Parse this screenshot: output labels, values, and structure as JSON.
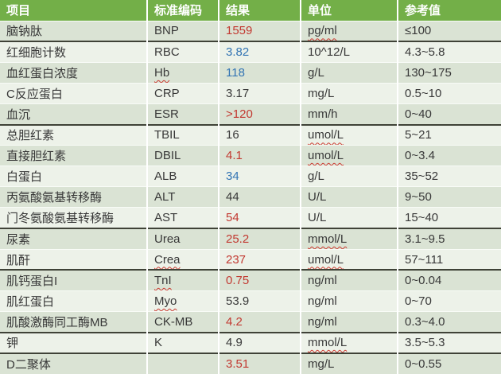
{
  "colors": {
    "header_bg": "#73AF48",
    "header_text": "#FFFFFF",
    "row_tinted": "#DAE3D4",
    "row_light": "#EDF2E9",
    "body_text": "#383838",
    "abnormal_high_red": "#C23931",
    "abnormal_low_blue": "#3274B3",
    "group_separator": "#3F4237",
    "row_separator": "#F8FBF7"
  },
  "table": {
    "columns": [
      {
        "label": "项目"
      },
      {
        "label": "标准编码"
      },
      {
        "label": "结果"
      },
      {
        "label": "单位"
      },
      {
        "label": "参考值"
      }
    ],
    "rows": [
      {
        "name": "脑钠肽",
        "code": "BNP",
        "result": "1559",
        "result_color": "red",
        "unit": "pg/ml",
        "unit_misspelled": true,
        "ref": "≤100",
        "separator_after": true
      },
      {
        "name": "红细胞计数",
        "code": "RBC",
        "result": "3.82",
        "result_color": "blue",
        "unit": "10^12/L",
        "ref": "4.3~5.8"
      },
      {
        "name": "血红蛋白浓度",
        "code": "Hb",
        "code_misspelled": true,
        "result": "118",
        "result_color": "blue",
        "unit": "g/L",
        "ref": "130~175"
      },
      {
        "name": "C反应蛋白",
        "code": "CRP",
        "result": "3.17",
        "result_color": "black",
        "unit": "mg/L",
        "ref": "0.5~10"
      },
      {
        "name": "血沉",
        "code": "ESR",
        "result": ">120",
        "result_color": "red",
        "unit": "mm/h",
        "ref": "0~40",
        "separator_after": true
      },
      {
        "name": "总胆红素",
        "code": "TBIL",
        "result": "16",
        "result_color": "black",
        "unit": "umol/L",
        "unit_misspelled": true,
        "ref": "5~21"
      },
      {
        "name": "直接胆红素",
        "code": "DBIL",
        "result": "4.1",
        "result_color": "red",
        "unit": "umol/L",
        "unit_misspelled": true,
        "ref": "0~3.4"
      },
      {
        "name": "白蛋白",
        "code": "ALB",
        "result": "34",
        "result_color": "blue",
        "unit": "g/L",
        "ref": "35~52"
      },
      {
        "name": "丙氨酸氨基转移酶",
        "code": "ALT",
        "result": "44",
        "result_color": "black",
        "unit": "U/L",
        "ref": "9~50"
      },
      {
        "name": "门冬氨酸氨基转移酶",
        "code": "AST",
        "result": "54",
        "result_color": "red",
        "unit": "U/L",
        "ref": "15~40",
        "separator_after": true
      },
      {
        "name": "尿素",
        "code": "Urea",
        "result": "25.2",
        "result_color": "red",
        "unit": "mmol/L",
        "unit_misspelled": true,
        "ref": "3.1~9.5"
      },
      {
        "name": "肌酐",
        "code": "Crea",
        "code_misspelled": true,
        "result": "237",
        "result_color": "red",
        "unit": "umol/L",
        "unit_misspelled": true,
        "ref": "57~111",
        "separator_after": true
      },
      {
        "name": "肌钙蛋白I",
        "code": "TnI",
        "code_misspelled": true,
        "result": "0.75",
        "result_color": "red",
        "unit": "ng/ml",
        "ref": "0~0.04"
      },
      {
        "name": "肌红蛋白",
        "code": "Myo",
        "code_misspelled": true,
        "result": "53.9",
        "result_color": "black",
        "unit": "ng/ml",
        "ref": "0~70"
      },
      {
        "name": "肌酸激酶同工酶MB",
        "code": "CK-MB",
        "result": "4.2",
        "result_color": "red",
        "unit": "ng/ml",
        "ref": "0.3~4.0",
        "separator_after": true
      },
      {
        "name": "钾",
        "code": "K",
        "result": "4.9",
        "result_color": "black",
        "unit": "mmol/L",
        "unit_misspelled": true,
        "ref": "3.5~5.3",
        "separator_after": true
      },
      {
        "name": "D二聚体",
        "code": "",
        "result": "3.51",
        "result_color": "red",
        "unit": "mg/L",
        "ref": "0~0.55"
      }
    ]
  }
}
